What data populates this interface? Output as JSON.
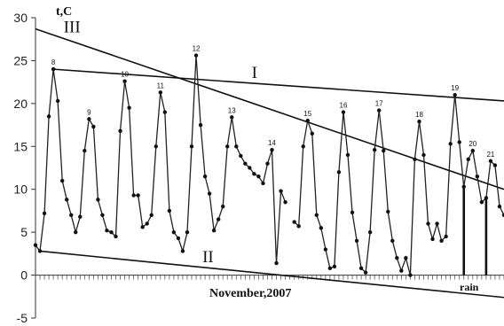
{
  "chart_data": {
    "type": "line",
    "ylabel": "t,C",
    "xlabel": "November,2007",
    "ylim": [
      -5,
      30
    ],
    "yticks": [
      -5,
      0,
      5,
      10,
      15,
      20,
      25,
      30
    ],
    "grid": false,
    "series": [
      {
        "name": "",
        "segments": [
          [
            [
              0.0,
              3.5
            ],
            [
              0.3,
              2.8
            ],
            [
              0.6,
              7.2
            ],
            [
              0.9,
              18.5
            ],
            [
              1.2,
              24.0
            ],
            [
              1.5,
              20.3
            ],
            [
              1.8,
              11.0
            ],
            [
              2.1,
              8.8
            ],
            [
              2.4,
              7.0
            ],
            [
              2.7,
              5.0
            ],
            [
              3.0,
              6.8
            ],
            [
              3.3,
              14.5
            ],
            [
              3.6,
              18.2
            ],
            [
              3.9,
              17.3
            ],
            [
              4.2,
              8.8
            ],
            [
              4.5,
              7.0
            ],
            [
              4.8,
              5.2
            ],
            [
              5.1,
              5.0
            ],
            [
              5.4,
              4.5
            ],
            [
              5.7,
              16.8
            ],
            [
              6.0,
              22.6
            ],
            [
              6.3,
              19.5
            ],
            [
              6.6,
              9.3
            ],
            [
              6.9,
              9.3
            ],
            [
              7.2,
              5.6
            ],
            [
              7.5,
              6.0
            ],
            [
              7.8,
              7.0
            ],
            [
              8.1,
              15.0
            ],
            [
              8.4,
              21.3
            ],
            [
              8.7,
              19.0
            ],
            [
              9.0,
              7.5
            ],
            [
              9.3,
              5.0
            ],
            [
              9.6,
              4.3
            ],
            [
              9.9,
              2.8
            ],
            [
              10.2,
              5.0
            ],
            [
              10.5,
              15.0
            ],
            [
              10.8,
              25.6
            ],
            [
              11.1,
              17.5
            ],
            [
              11.4,
              11.5
            ],
            [
              11.7,
              9.5
            ],
            [
              12.0,
              5.2
            ],
            [
              12.3,
              6.5
            ],
            [
              12.6,
              8.0
            ],
            [
              12.9,
              15.0
            ],
            [
              13.2,
              18.4
            ],
            [
              13.5,
              15.0
            ],
            [
              13.8,
              13.9
            ],
            [
              14.1,
              13.0
            ],
            [
              14.4,
              12.5
            ],
            [
              14.7,
              11.8
            ],
            [
              15.0,
              11.5
            ],
            [
              15.3,
              10.7
            ],
            [
              15.6,
              13.0
            ],
            [
              15.9,
              14.6
            ],
            [
              16.2,
              1.4
            ],
            [
              16.5,
              9.8
            ],
            [
              16.8,
              8.5
            ]
          ],
          [
            [
              17.4,
              6.2
            ],
            [
              17.7,
              5.7
            ],
            [
              18.0,
              15.0
            ],
            [
              18.3,
              18.0
            ],
            [
              18.6,
              16.5
            ],
            [
              18.9,
              7.0
            ],
            [
              19.2,
              5.5
            ],
            [
              19.5,
              3.0
            ],
            [
              19.8,
              0.8
            ],
            [
              20.1,
              1.0
            ],
            [
              20.4,
              12.0
            ],
            [
              20.7,
              19.0
            ],
            [
              21.0,
              14.0
            ],
            [
              21.3,
              7.3
            ],
            [
              21.6,
              4.0
            ],
            [
              21.9,
              0.8
            ],
            [
              22.2,
              0.3
            ],
            [
              22.5,
              5.0
            ],
            [
              22.8,
              14.6
            ],
            [
              23.1,
              19.2
            ],
            [
              23.4,
              14.5
            ],
            [
              23.7,
              7.4
            ],
            [
              24.0,
              4.0
            ],
            [
              24.3,
              2.0
            ],
            [
              24.6,
              0.5
            ],
            [
              24.9,
              2.0
            ],
            [
              25.2,
              0.0
            ],
            [
              25.5,
              13.5
            ],
            [
              25.8,
              17.9
            ],
            [
              26.1,
              14.0
            ],
            [
              26.4,
              6.0
            ],
            [
              26.7,
              4.2
            ],
            [
              27.0,
              6.0
            ],
            [
              27.3,
              4.0
            ],
            [
              27.6,
              4.5
            ],
            [
              27.9,
              15.3
            ],
            [
              28.2,
              21.0
            ],
            [
              28.5,
              15.5
            ],
            [
              28.8,
              10.3
            ],
            [
              29.1,
              13.5
            ],
            [
              29.4,
              14.5
            ],
            [
              29.7,
              11.5
            ],
            [
              30.0,
              8.5
            ],
            [
              30.3,
              9.0
            ],
            [
              30.6,
              13.3
            ],
            [
              30.9,
              12.8
            ],
            [
              31.2,
              8.0
            ],
            [
              31.5,
              7.0
            ]
          ]
        ]
      }
    ],
    "x_range": [
      0,
      31.5
    ],
    "peak_labels": [
      {
        "text": "8",
        "x": 1.2,
        "y": 24.0
      },
      {
        "text": "9",
        "x": 3.6,
        "y": 18.2
      },
      {
        "text": "10",
        "x": 6.0,
        "y": 22.6
      },
      {
        "text": "11",
        "x": 8.4,
        "y": 21.3
      },
      {
        "text": "12",
        "x": 10.8,
        "y": 25.6
      },
      {
        "text": "13",
        "x": 13.2,
        "y": 18.4
      },
      {
        "text": "14",
        "x": 15.9,
        "y": 14.6
      },
      {
        "text": "15",
        "x": 18.3,
        "y": 18.0
      },
      {
        "text": "16",
        "x": 20.7,
        "y": 19.0
      },
      {
        "text": "17",
        "x": 23.1,
        "y": 19.2
      },
      {
        "text": "18",
        "x": 25.8,
        "y": 17.9
      },
      {
        "text": "19",
        "x": 28.2,
        "y": 21.0
      },
      {
        "text": "20",
        "x": 29.4,
        "y": 14.5
      },
      {
        "text": "21",
        "x": 30.6,
        "y": 13.3
      }
    ],
    "trend_lines": [
      {
        "label": "III",
        "from": [
          0.0,
          28.7
        ],
        "to": [
          31.5,
          10.0
        ]
      },
      {
        "label": "I",
        "from": [
          1.2,
          24.0
        ],
        "to": [
          31.5,
          20.3
        ]
      },
      {
        "label": "II",
        "from": [
          0.3,
          2.8
        ],
        "to": [
          31.5,
          -2.6
        ]
      }
    ],
    "rain_marks": [
      {
        "x": 28.8,
        "y": 10.3
      },
      {
        "x": 30.3,
        "y": 9.0
      }
    ],
    "annotation": "rain"
  }
}
